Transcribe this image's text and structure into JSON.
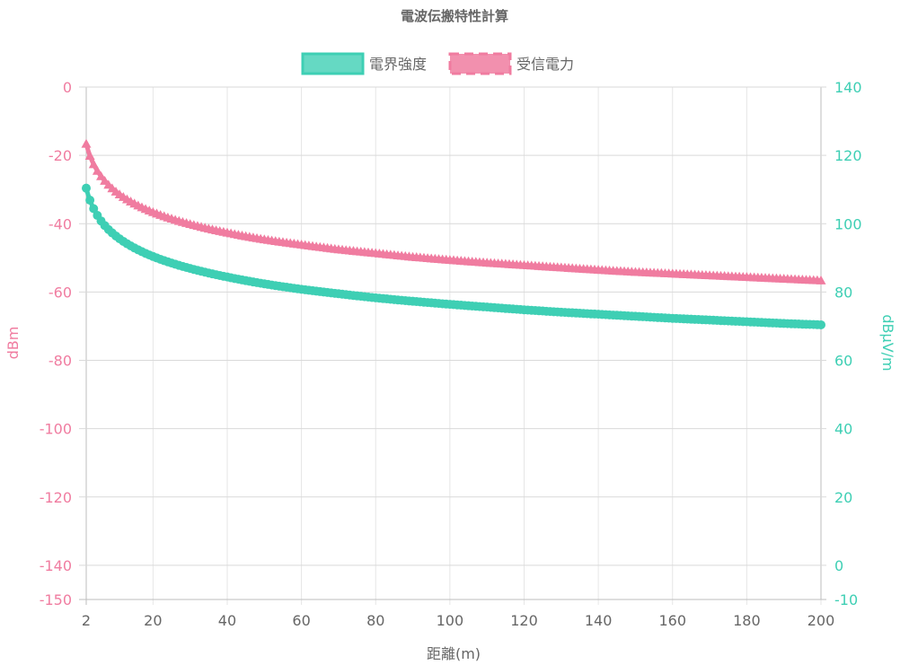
{
  "chart_data": {
    "type": "line",
    "title": "電波伝搬特性計算",
    "xlabel": "距離(m)",
    "ylabel_left": "dBm",
    "ylabel_right": "dBμV/m",
    "x_range": [
      2,
      200
    ],
    "x_ticks": [
      2,
      20,
      40,
      60,
      80,
      100,
      120,
      140,
      160,
      180,
      200
    ],
    "x_tick_labels": [
      "2",
      "20",
      "40",
      "60",
      "80",
      "100",
      "120",
      "140",
      "160",
      "180",
      "200"
    ],
    "y_left_range": [
      -150,
      0
    ],
    "y_left_ticks": [
      0,
      -20,
      -40,
      -60,
      -80,
      -100,
      -120,
      -140,
      -150
    ],
    "y_left_tick_labels": [
      "0",
      "-20",
      "-40",
      "-60",
      "-80",
      "-100",
      "-120",
      "-140",
      "-150"
    ],
    "y_right_range": [
      -10,
      140
    ],
    "y_right_ticks": [
      140,
      120,
      100,
      80,
      60,
      40,
      20,
      0,
      -10
    ],
    "y_right_tick_labels": [
      "140",
      "120",
      "100",
      "80",
      "60",
      "40",
      "20",
      "0",
      "-10"
    ],
    "grid": true,
    "legend_position": "top-center",
    "x": [
      2,
      4,
      6,
      8,
      10,
      15,
      20,
      30,
      40,
      50,
      60,
      70,
      80,
      90,
      100,
      110,
      120,
      130,
      140,
      150,
      160,
      170,
      180,
      190,
      200
    ],
    "series": [
      {
        "name": "電界強度",
        "axis": "right",
        "color": "#3ecfb4",
        "marker": "circle",
        "values": [
          110.4,
          104.4,
          100.8,
          98.3,
          96.4,
          92.9,
          90.4,
          86.9,
          84.4,
          82.4,
          80.8,
          79.5,
          78.3,
          77.3,
          76.4,
          75.6,
          74.8,
          74.1,
          73.5,
          72.9,
          72.3,
          71.8,
          71.3,
          70.8,
          70.4
        ]
      },
      {
        "name": "受信電力",
        "axis": "left",
        "color": "#f07ca0",
        "marker": "triangle",
        "values": [
          -16.6,
          -22.6,
          -26.1,
          -28.6,
          -30.6,
          -34.1,
          -36.6,
          -40.1,
          -42.6,
          -44.6,
          -46.1,
          -47.5,
          -48.6,
          -49.7,
          -50.6,
          -51.4,
          -52.1,
          -52.8,
          -53.5,
          -54.1,
          -54.6,
          -55.1,
          -55.6,
          -56.1,
          -56.6
        ]
      }
    ]
  }
}
